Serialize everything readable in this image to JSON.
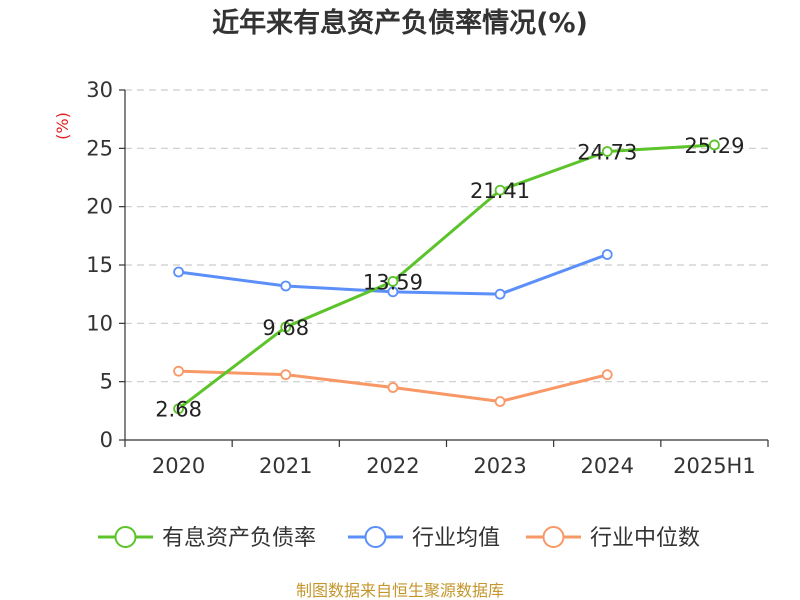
{
  "chart_data": {
    "type": "line",
    "title": "近年来有息资产负债率情况(%)",
    "ylabel": "(%)",
    "ylim": [
      0,
      30
    ],
    "yticks": [
      0,
      5,
      10,
      15,
      20,
      25,
      30
    ],
    "categories": [
      "2020",
      "2021",
      "2022",
      "2023",
      "2024",
      "2025H1"
    ],
    "grid": true,
    "legend_position": "bottom",
    "series": [
      {
        "name": "有息资产负债率",
        "color": "#5cc42a",
        "values": [
          2.68,
          9.68,
          13.59,
          21.41,
          24.73,
          25.29
        ],
        "labels": [
          "2.68",
          "9.68",
          "13.59",
          "21.41",
          "24.73",
          "25.29"
        ]
      },
      {
        "name": "行业均值",
        "color": "#5b8ff9",
        "values": [
          14.4,
          13.2,
          12.7,
          12.5,
          15.9,
          null
        ]
      },
      {
        "name": "行业中位数",
        "color": "#f89866",
        "values": [
          5.9,
          5.6,
          4.5,
          3.3,
          5.6,
          null
        ]
      }
    ]
  },
  "colors": {
    "axis": "#333333",
    "grid": "#cccccc",
    "unit_label": "#e02020",
    "source_text": "#c4962c"
  },
  "source": "制图数据来自恒生聚源数据库"
}
